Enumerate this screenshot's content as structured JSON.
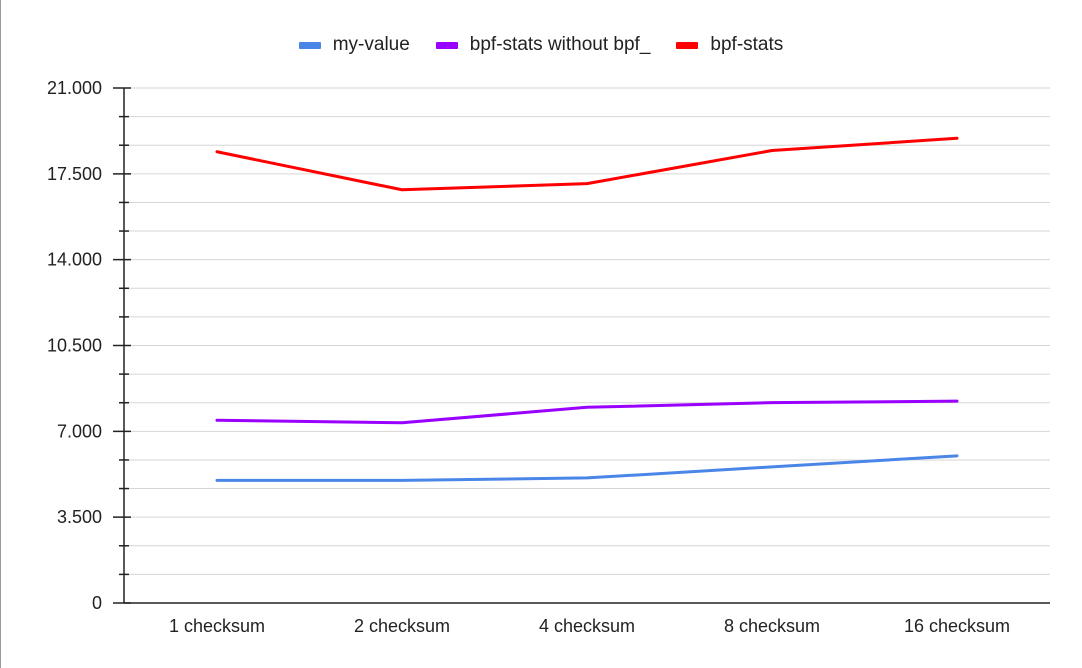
{
  "chart_data": {
    "type": "line",
    "categories": [
      "1 checksum",
      "2 checksum",
      "4 checksum",
      "8 checksum",
      "16 checksum"
    ],
    "series": [
      {
        "name": "my-value",
        "color": "#4a86e8",
        "values": [
          5000,
          5000,
          5100,
          5550,
          6000
        ]
      },
      {
        "name": "bpf-stats without bpf_",
        "color": "#9900ff",
        "values": [
          7450,
          7350,
          7980,
          8170,
          8230
        ]
      },
      {
        "name": "bpf-stats",
        "color": "#ff0000",
        "values": [
          18400,
          16850,
          17100,
          18450,
          18950
        ]
      }
    ],
    "ylim": [
      0,
      21000
    ],
    "yticks": [
      0,
      3500,
      7000,
      10500,
      14000,
      17500,
      21000
    ],
    "ytick_labels": [
      "0",
      "3.500",
      "7.000",
      "10.500",
      "14.000",
      "17.500",
      "21.000"
    ],
    "minor_ticks_per_major": 2,
    "grid": true,
    "legend_position": "top"
  }
}
